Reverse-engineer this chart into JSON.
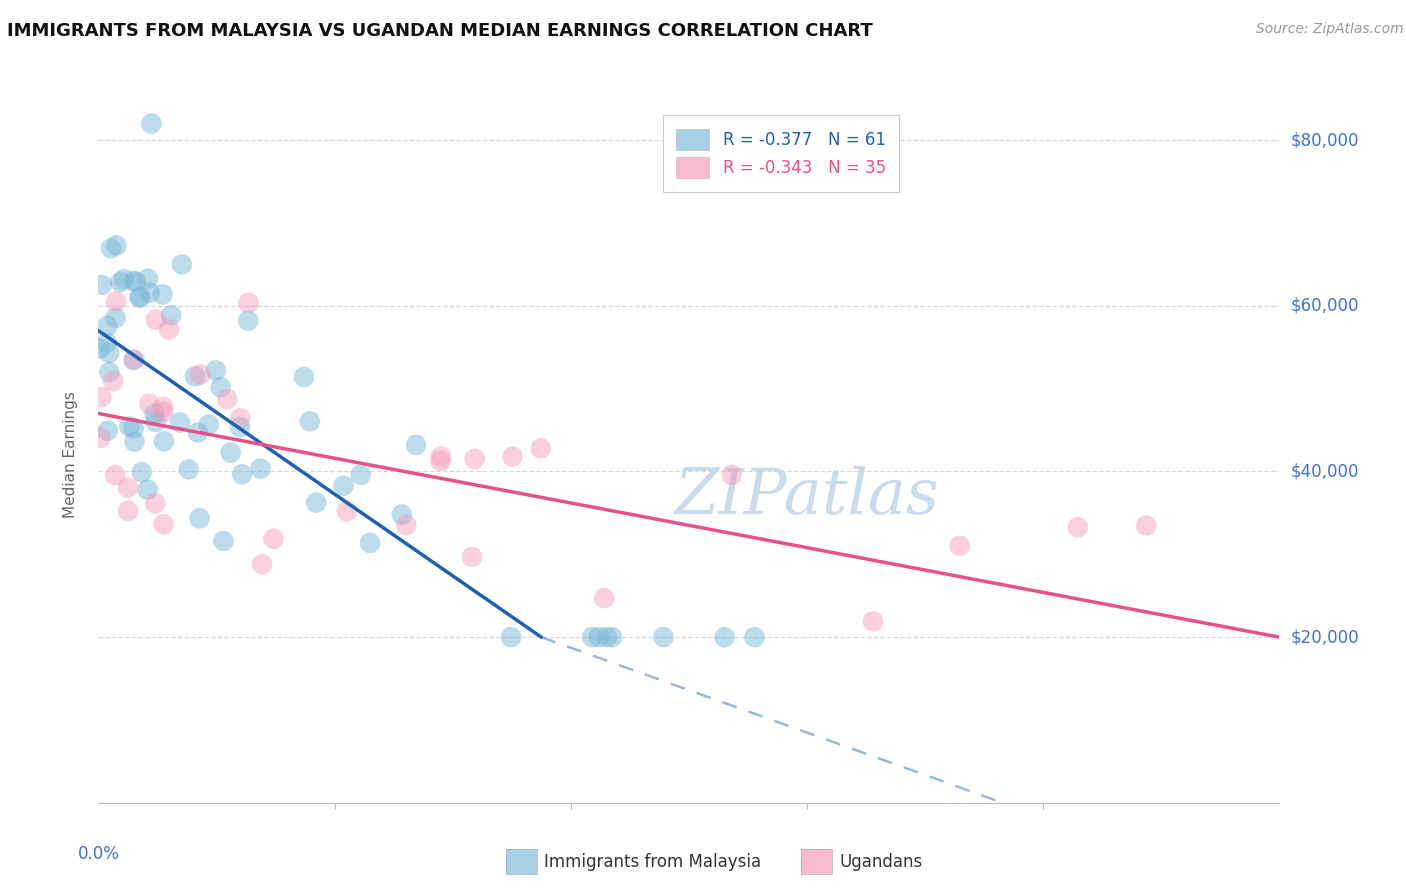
{
  "title": "IMMIGRANTS FROM MALAYSIA VS UGANDAN MEDIAN EARNINGS CORRELATION CHART",
  "source": "Source: ZipAtlas.com",
  "ylabel": "Median Earnings",
  "xmin": 0.0,
  "xmax": 0.2,
  "ymin": 0,
  "ymax": 84000,
  "ytick_vals": [
    20000,
    40000,
    60000,
    80000
  ],
  "ytick_labels": [
    "$20,000",
    "$40,000",
    "$60,000",
    "$80,000"
  ],
  "blue_label": "Immigrants from Malaysia",
  "pink_label": "Ugandans",
  "blue_R": "-0.377",
  "blue_N": "61",
  "pink_R": "-0.343",
  "pink_N": "35",
  "blue_scatter_color": "#7ab8d9",
  "pink_scatter_color": "#f595b8",
  "blue_line_color": "#2060b0",
  "pink_line_color": "#e8508a",
  "blue_trend": [
    0.0,
    57000,
    0.075,
    20000
  ],
  "blue_dash": [
    0.075,
    20000,
    0.2,
    -12000
  ],
  "pink_trend": [
    0.0,
    47000,
    0.2,
    20000
  ],
  "axis_tick_color": "#4472c4",
  "grid_color": "#d8d8d8",
  "watermark_color": "#c5d8ea",
  "background_color": "#ffffff",
  "title_fontsize": 13,
  "source_fontsize": 10,
  "tick_fontsize": 12,
  "legend_fontsize": 12
}
